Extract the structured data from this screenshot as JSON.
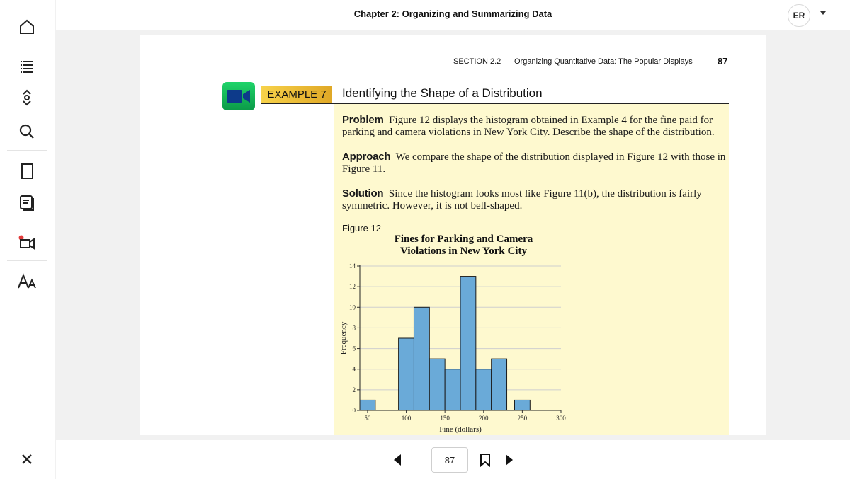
{
  "app": {
    "chapter_title": "Chapter 2: Organizing and Summarizing Data",
    "user_initials": "ER",
    "sidebar_icons": [
      "home-icon",
      "table-of-contents-icon",
      "page-scroll-icon",
      "search-icon",
      "notebook-icon",
      "flashcards-icon",
      "media-icon",
      "text-size-icon",
      "close-icon"
    ]
  },
  "page": {
    "section": "SECTION 2.2",
    "section_title": "Organizing Quantitative Data: The Popular Displays",
    "page_number": "87",
    "example_label": "EXAMPLE 7",
    "example_title": "Identifying the Shape of a Distribution",
    "problem_lead": "Problem",
    "problem_text": "Figure 12 displays the histogram obtained in Example 4 for the fine paid for parking and camera violations in New York City. Describe the shape of the distribution.",
    "approach_lead": "Approach",
    "approach_text": "We compare the shape of the distribution displayed in Figure 12 with those in Figure 11.",
    "solution_lead": "Solution",
    "solution_text": "Since the histogram looks most like Figure 11(b), the distribution is fairly symmetric. However, it is not bell-shaped.",
    "figure_label": "Figure 12"
  },
  "chart_data": {
    "type": "bar",
    "title": "Fines for Parking and Camera Violations in New York City",
    "xlabel": "Fine (dollars)",
    "ylabel": "Frequency",
    "bins": [
      [
        40,
        60
      ],
      [
        90,
        110
      ],
      [
        110,
        130
      ],
      [
        130,
        150
      ],
      [
        150,
        170
      ],
      [
        170,
        190
      ],
      [
        190,
        210
      ],
      [
        210,
        230
      ],
      [
        240,
        260
      ]
    ],
    "values": [
      1,
      7,
      10,
      5,
      4,
      13,
      4,
      5,
      1
    ],
    "x_ticks": [
      50,
      100,
      150,
      200,
      250,
      300
    ],
    "y_ticks": [
      0,
      2,
      4,
      6,
      8,
      10,
      12,
      14
    ],
    "xlim": [
      40,
      300
    ],
    "ylim": [
      0,
      14
    ],
    "bar_color": "#6aaad8",
    "grid": true
  },
  "nav": {
    "current_page": "87"
  },
  "colors": {
    "highlight_background": "#fef9cf",
    "example_badge": "#f2c53d",
    "video_icon": "#12c05a"
  }
}
